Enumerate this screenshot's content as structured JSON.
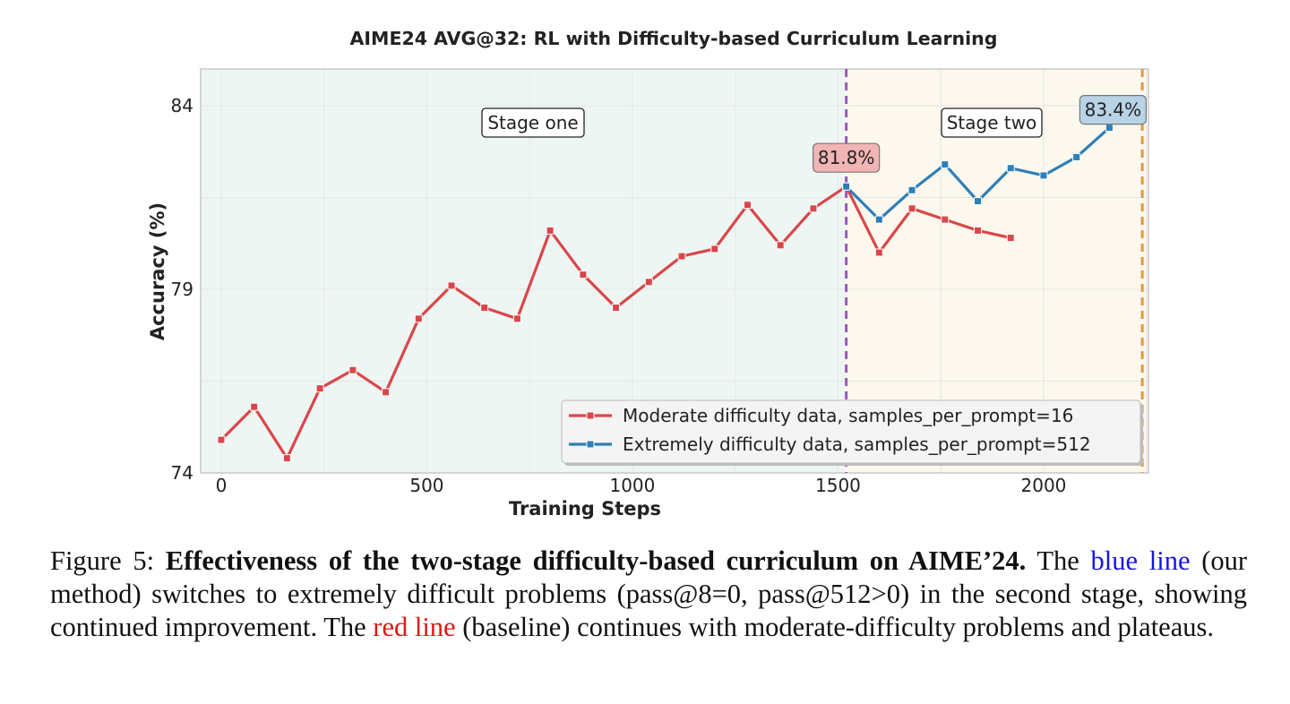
{
  "chart_data": {
    "type": "line",
    "title": "AIME24 AVG@32: RL with Difficulty-based Curriculum Learning",
    "xlabel": "Training Steps",
    "ylabel": "Accuracy (%)",
    "xlim": [
      -50,
      2255
    ],
    "ylim": [
      74,
      85
    ],
    "xticks": [
      0,
      500,
      1000,
      1500,
      2000
    ],
    "yticks": [
      74,
      79,
      84
    ],
    "grid": true,
    "legend_position": "lower-right",
    "stage_regions": [
      {
        "label": "Stage one",
        "from": -50,
        "to": 1520,
        "color": "#eef6f4"
      },
      {
        "label": "Stage two",
        "from": 1520,
        "to": 2255,
        "color": "#fdf8ee"
      }
    ],
    "vlines": [
      {
        "x": 1520,
        "color": "#9b59b6"
      },
      {
        "x": 2240,
        "color": "#e09a3a"
      }
    ],
    "series": [
      {
        "name": "Moderate difficulty data, samples_per_prompt=16",
        "color": "#d9474a",
        "x": [
          0,
          80,
          160,
          240,
          320,
          400,
          480,
          560,
          640,
          720,
          800,
          880,
          960,
          1040,
          1120,
          1200,
          1280,
          1360,
          1440,
          1520,
          1600,
          1680,
          1760,
          1840,
          1920
        ],
        "y": [
          74.9,
          75.8,
          74.4,
          76.3,
          76.8,
          76.2,
          78.2,
          79.1,
          78.5,
          78.2,
          80.6,
          79.4,
          78.5,
          79.2,
          79.9,
          80.1,
          81.3,
          80.2,
          81.2,
          81.8,
          80.0,
          81.2,
          80.9,
          80.6,
          80.4
        ]
      },
      {
        "name": "Extremely difficulty data, samples_per_prompt=512",
        "color": "#2e7fb8",
        "x": [
          1520,
          1600,
          1680,
          1760,
          1840,
          1920,
          2000,
          2080,
          2160
        ],
        "y": [
          81.8,
          80.9,
          81.7,
          82.4,
          81.4,
          82.3,
          82.1,
          82.6,
          83.4
        ]
      }
    ],
    "annotations": [
      {
        "text": "81.8%",
        "series": 0,
        "x": 1520,
        "y": 81.8,
        "bg": "#f2b5b5"
      },
      {
        "text": "83.4%",
        "series": 1,
        "x": 2160,
        "y": 83.4,
        "bg": "#b8d3e6"
      }
    ]
  },
  "caption": {
    "prefix": "Figure 5: ",
    "bold": "Effectiveness of the two-stage difficulty-based curriculum on AIME’24.",
    "part1": " The ",
    "blue_ref": "blue line",
    "part2": " (our method) switches to extremely difficult problems (pass@8=0, pass@512>0) in the second stage, showing continued improvement. The ",
    "red_ref": "red line",
    "part3": " (baseline) continues with moderate-difficulty problems and plateaus."
  }
}
